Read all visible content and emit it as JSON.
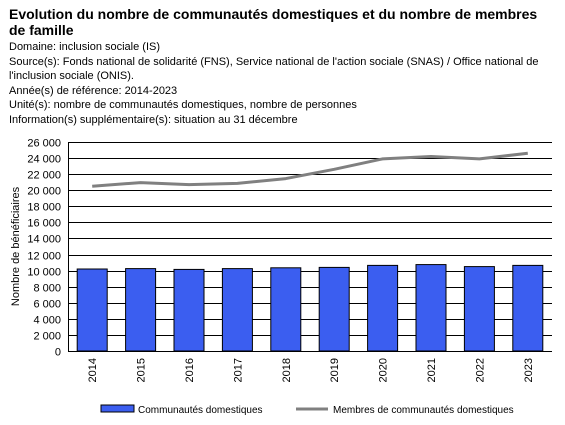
{
  "header": {
    "title": "Evolution du nombre de communautés domestiques et du nombre de membres de famille",
    "domaine": "Domaine: inclusion sociale (IS)",
    "sources": "Source(s): Fonds national de solidarité (FNS), Service national de l'action sociale (SNAS) / Office national de l'inclusion sociale (ONIS).",
    "annee": "Année(s) de référence: 2014-2023",
    "unites": "Unité(s): nombre de communautés domestiques, nombre de personnes",
    "info": "Information(s) supplémentaire(s): situation au 31 décembre"
  },
  "chart_data": {
    "type": "bar",
    "ylabel": "Nombre de bénéficiaires",
    "xlabel": "",
    "ylim": [
      0,
      26000
    ],
    "ytick_step": 2000,
    "grid": true,
    "legend_position": "bottom",
    "categories": [
      "2014",
      "2015",
      "2016",
      "2017",
      "2018",
      "2019",
      "2020",
      "2021",
      "2022",
      "2023"
    ],
    "series": [
      {
        "name": "Communautés domestiques",
        "type": "bar",
        "color": "#3b5ef0",
        "values": [
          10200,
          10250,
          10150,
          10250,
          10350,
          10400,
          10650,
          10750,
          10500,
          10650
        ]
      },
      {
        "name": "Membres de communautés domestiques",
        "type": "line",
        "color": "#808080",
        "values": [
          20500,
          20950,
          20700,
          20850,
          21450,
          22600,
          23900,
          24200,
          23900,
          24600
        ]
      }
    ]
  }
}
